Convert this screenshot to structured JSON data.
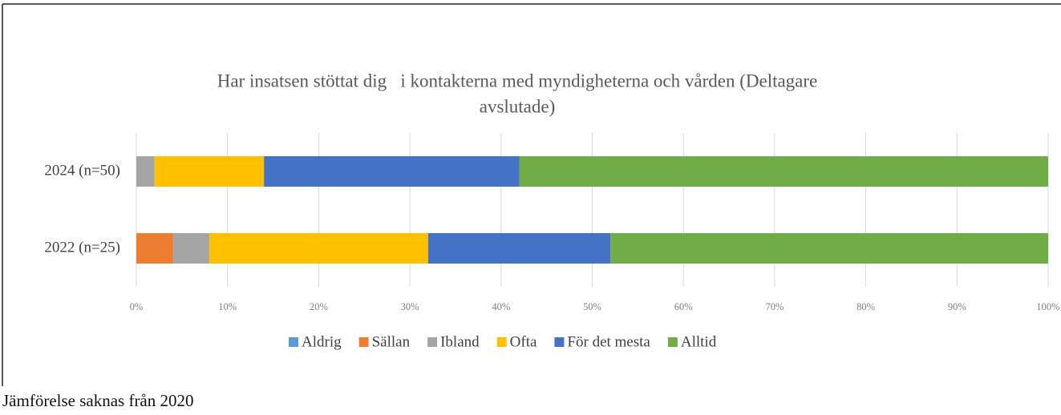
{
  "chart_data": {
    "type": "stacked-barh",
    "title": [
      "Har insatsen stöttat dig   i kontakterna med myndigheterna och vården (Deltagare",
      "avslutade)"
    ],
    "categories": [
      "2024 (n=50)",
      "2022 (n=25)"
    ],
    "series": [
      {
        "name": "Aldrig",
        "color": "#5b9bd5",
        "values": [
          0,
          0
        ]
      },
      {
        "name": "Sällan",
        "color": "#ed7d31",
        "values": [
          0,
          4
        ]
      },
      {
        "name": "Ibland",
        "color": "#a5a5a5",
        "values": [
          2,
          4
        ]
      },
      {
        "name": "Ofta",
        "color": "#ffc000",
        "values": [
          12,
          24
        ]
      },
      {
        "name": "För det mesta",
        "color": "#4472c4",
        "values": [
          28,
          20
        ]
      },
      {
        "name": "Alltid",
        "color": "#70ad47",
        "values": [
          58,
          48
        ]
      }
    ],
    "xlim": [
      0,
      100
    ],
    "xticks": [
      {
        "value": 0,
        "label": "0%"
      },
      {
        "value": 10,
        "label": "10%"
      },
      {
        "value": 20,
        "label": "20%"
      },
      {
        "value": 30,
        "label": "30%"
      },
      {
        "value": 40,
        "label": "40%"
      },
      {
        "value": 50,
        "label": "50%"
      },
      {
        "value": 60,
        "label": "60%"
      },
      {
        "value": 70,
        "label": "70%"
      },
      {
        "value": 80,
        "label": "80%"
      },
      {
        "value": 90,
        "label": "90%"
      },
      {
        "value": 100,
        "label": "100%"
      }
    ],
    "grid": true,
    "legend": "bottom"
  },
  "footnote": "Jämförelse saknas från 2020"
}
